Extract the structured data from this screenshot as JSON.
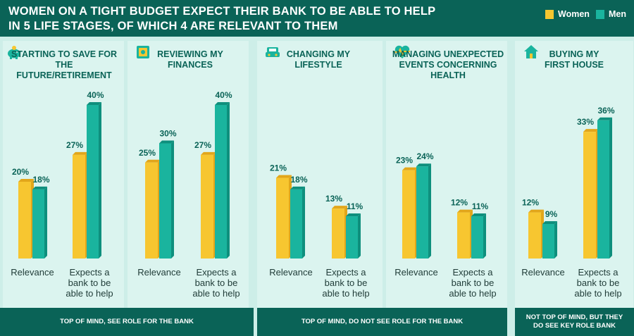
{
  "header": {
    "title_line1": "WOMEN ON A TIGHT BUDGET EXPECT THEIR BANK TO BE ABLE TO HELP",
    "title_line2": "IN 5 LIFE STAGES, OF WHICH 4 ARE RELEVANT TO THEM"
  },
  "legend": {
    "women_label": "Women",
    "men_label": "Men"
  },
  "colors": {
    "women": "#f7c630",
    "women_dark": "#e2a61a",
    "men": "#1ab49e",
    "men_dark": "#0e8f7d",
    "header_bg": "#0a6357",
    "panel_bg": "#dbf4ef",
    "page_bg": "#cdeee8",
    "value_text": "#0a6357"
  },
  "footers": [
    "TOP OF MIND, SEE ROLE FOR THE BANK",
    "TOP OF MIND, DO NOT SEE ROLE FOR THE BANK",
    "NOT TOP OF MIND, BUT THEY DO SEE KEY ROLE BANK"
  ],
  "chart_data": [
    {
      "type": "bar",
      "title": "STARTING TO SAVE FOR THE FUTURE/RETIREMENT",
      "icon": "piggy-bank-icon",
      "categories": [
        "Relevance",
        "Expects a bank to be able to help"
      ],
      "series": [
        {
          "name": "Women",
          "values": [
            20,
            27
          ]
        },
        {
          "name": "Men",
          "values": [
            18,
            40
          ]
        }
      ],
      "unit": "%"
    },
    {
      "type": "bar",
      "title": "REVIEWING MY FINANCES",
      "icon": "safe-icon",
      "categories": [
        "Relevance",
        "Expects a bank to be able to help"
      ],
      "series": [
        {
          "name": "Women",
          "values": [
            25,
            27
          ]
        },
        {
          "name": "Men",
          "values": [
            30,
            40
          ]
        }
      ],
      "unit": "%"
    },
    {
      "type": "bar",
      "title": "CHANGING MY LIFESTYLE",
      "icon": "car-icon",
      "categories": [
        "Relevance",
        "Expects a bank to be able to help"
      ],
      "series": [
        {
          "name": "Women",
          "values": [
            21,
            13
          ]
        },
        {
          "name": "Men",
          "values": [
            18,
            11
          ]
        }
      ],
      "unit": "%"
    },
    {
      "type": "bar",
      "title": "MANAGING UNEXPECTED EVENTS CONCERNING HEALTH",
      "icon": "heartbeat-icon",
      "categories": [
        "Relevance",
        "Expects a bank to be able to help"
      ],
      "series": [
        {
          "name": "Women",
          "values": [
            23,
            12
          ]
        },
        {
          "name": "Men",
          "values": [
            24,
            11
          ]
        }
      ],
      "unit": "%"
    },
    {
      "type": "bar",
      "title": "BUYING MY FIRST HOUSE",
      "icon": "house-icon",
      "categories": [
        "Relevance",
        "Expects a bank to be able to help"
      ],
      "series": [
        {
          "name": "Women",
          "values": [
            12,
            33
          ]
        },
        {
          "name": "Men",
          "values": [
            9,
            36
          ]
        }
      ],
      "unit": "%"
    }
  ]
}
